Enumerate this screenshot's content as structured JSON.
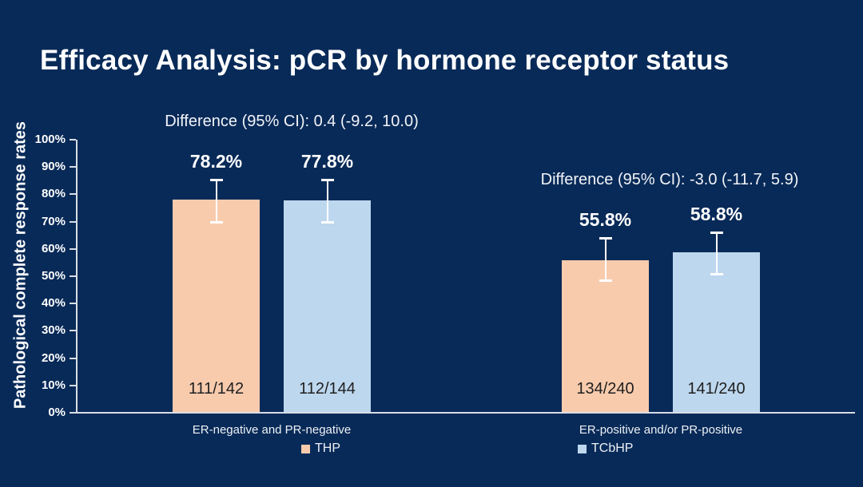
{
  "title": "Efficacy Analysis: pCR by hormone receptor status",
  "colors": {
    "background": "#082a58",
    "title_text": "#ffffff",
    "annotation_text": "#f2f4f8",
    "axis": "#d8dde5",
    "tick_label_text": "#ffffff",
    "error_bar": "#ffffff",
    "value_label_text": "#ffffff",
    "fraction_text": "#1f1f1f",
    "category_text": "#eef1f6",
    "legend_text": "#eef1f6"
  },
  "chart_data": {
    "type": "bar",
    "title": "Efficacy Analysis: pCR by hormone receptor status",
    "xlabel": "",
    "ylabel": "Pathological complete response rates",
    "ylim": [
      0,
      100
    ],
    "yticks": [
      "0%",
      "10%",
      "20%",
      "30%",
      "40%",
      "50%",
      "60%",
      "70%",
      "80%",
      "90%",
      "100%"
    ],
    "grid": false,
    "legend_position": "bottom",
    "categories": [
      "ER-negative and PR-negative",
      "ER-positive and/or PR-positive"
    ],
    "series": [
      {
        "name": "THP",
        "color": "#F8CBAD",
        "values": [
          78.2,
          55.8
        ],
        "value_labels": [
          "78.2%",
          "55.8%"
        ],
        "fractions": [
          "111/142",
          "134/240"
        ],
        "ci_low": [
          70.0,
          48.6
        ],
        "ci_high": [
          85.5,
          63.9
        ]
      },
      {
        "name": "TCbHP",
        "color": "#BDD7EE",
        "values": [
          77.8,
          58.8
        ],
        "value_labels": [
          "77.8%",
          "58.8%"
        ],
        "fractions": [
          "112/144",
          "141/240"
        ],
        "ci_low": [
          70.0,
          51.0
        ],
        "ci_high": [
          85.3,
          66.2
        ]
      }
    ],
    "annotations": [
      "Difference (95% CI): 0.4 (-9.2, 10.0)",
      "Difference (95% CI): -3.0 (-11.7, 5.9)"
    ]
  }
}
